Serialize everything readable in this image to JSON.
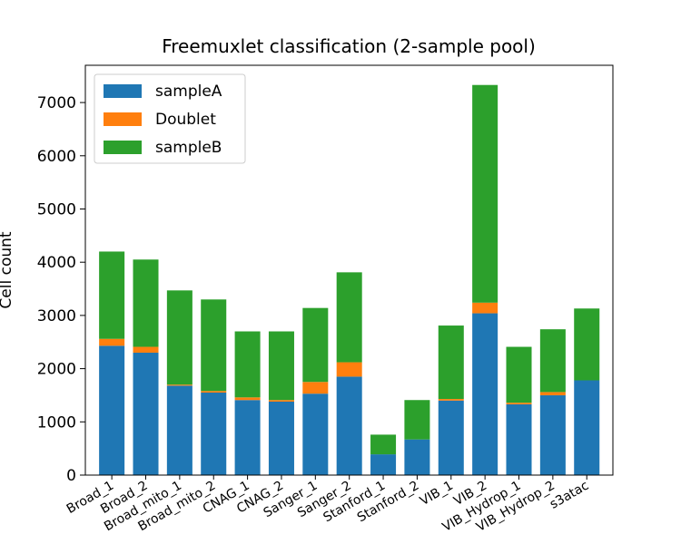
{
  "chart_data": {
    "type": "bar",
    "stacked": true,
    "title": "Freemuxlet classification (2-sample pool)",
    "xlabel": "",
    "ylabel": "Cell count",
    "ylim": [
      0,
      7700
    ],
    "yticks": [
      0,
      1000,
      2000,
      3000,
      4000,
      5000,
      6000,
      7000
    ],
    "grid": false,
    "legend_position": "top-left",
    "categories": [
      "Broad_1",
      "Broad_2",
      "Broad_mito_1",
      "Broad_mito_2",
      "CNAG_1",
      "CNAG_2",
      "Sanger_1",
      "Sanger_2",
      "Stanford_1",
      "Stanford_2",
      "VIB_1",
      "VIB_2",
      "VIB_Hydrop_1",
      "VIB_Hydrop_2",
      "s3atac"
    ],
    "series": [
      {
        "name": "sampleA",
        "color": "#1f77b4",
        "values": [
          2430,
          2300,
          1680,
          1550,
          1410,
          1380,
          1530,
          1850,
          390,
          670,
          1400,
          3040,
          1330,
          1500,
          1780
        ]
      },
      {
        "name": "Doublet",
        "color": "#ff7f0e",
        "values": [
          130,
          110,
          20,
          30,
          50,
          30,
          220,
          270,
          0,
          0,
          30,
          200,
          30,
          60,
          0
        ]
      },
      {
        "name": "sampleB",
        "color": "#2ca02c",
        "values": [
          1640,
          1640,
          1770,
          1720,
          1240,
          1290,
          1390,
          1690,
          370,
          740,
          1380,
          4090,
          1050,
          1180,
          1350
        ]
      }
    ]
  }
}
